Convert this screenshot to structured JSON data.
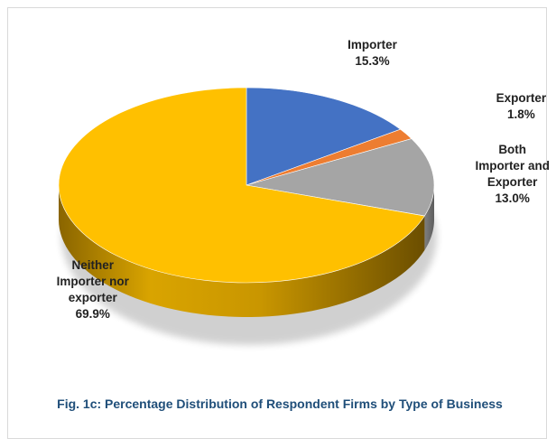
{
  "chart_data": {
    "type": "pie",
    "style": "3d",
    "categories": [
      "Importer",
      "Exporter",
      "Both Importer and Exporter",
      "Neither Importer nor exporter"
    ],
    "values": [
      15.3,
      1.8,
      13.0,
      69.9
    ],
    "unit": "%",
    "labels": [
      {
        "lines": [
          "Importer",
          "15.3%"
        ]
      },
      {
        "lines": [
          "Exporter",
          "1.8%"
        ]
      },
      {
        "lines": [
          "Both",
          "Importer and",
          "Exporter",
          "13.0%"
        ]
      },
      {
        "lines": [
          "Neither",
          "Importer nor",
          "exporter",
          "69.9%"
        ]
      }
    ],
    "colors": [
      "#4472c4",
      "#ed7d31",
      "#a5a5a5",
      "#ffc000"
    ],
    "title": "Fig. 1c: Percentage Distribution of Respondent Firms by Type of Business",
    "legend": "none"
  }
}
